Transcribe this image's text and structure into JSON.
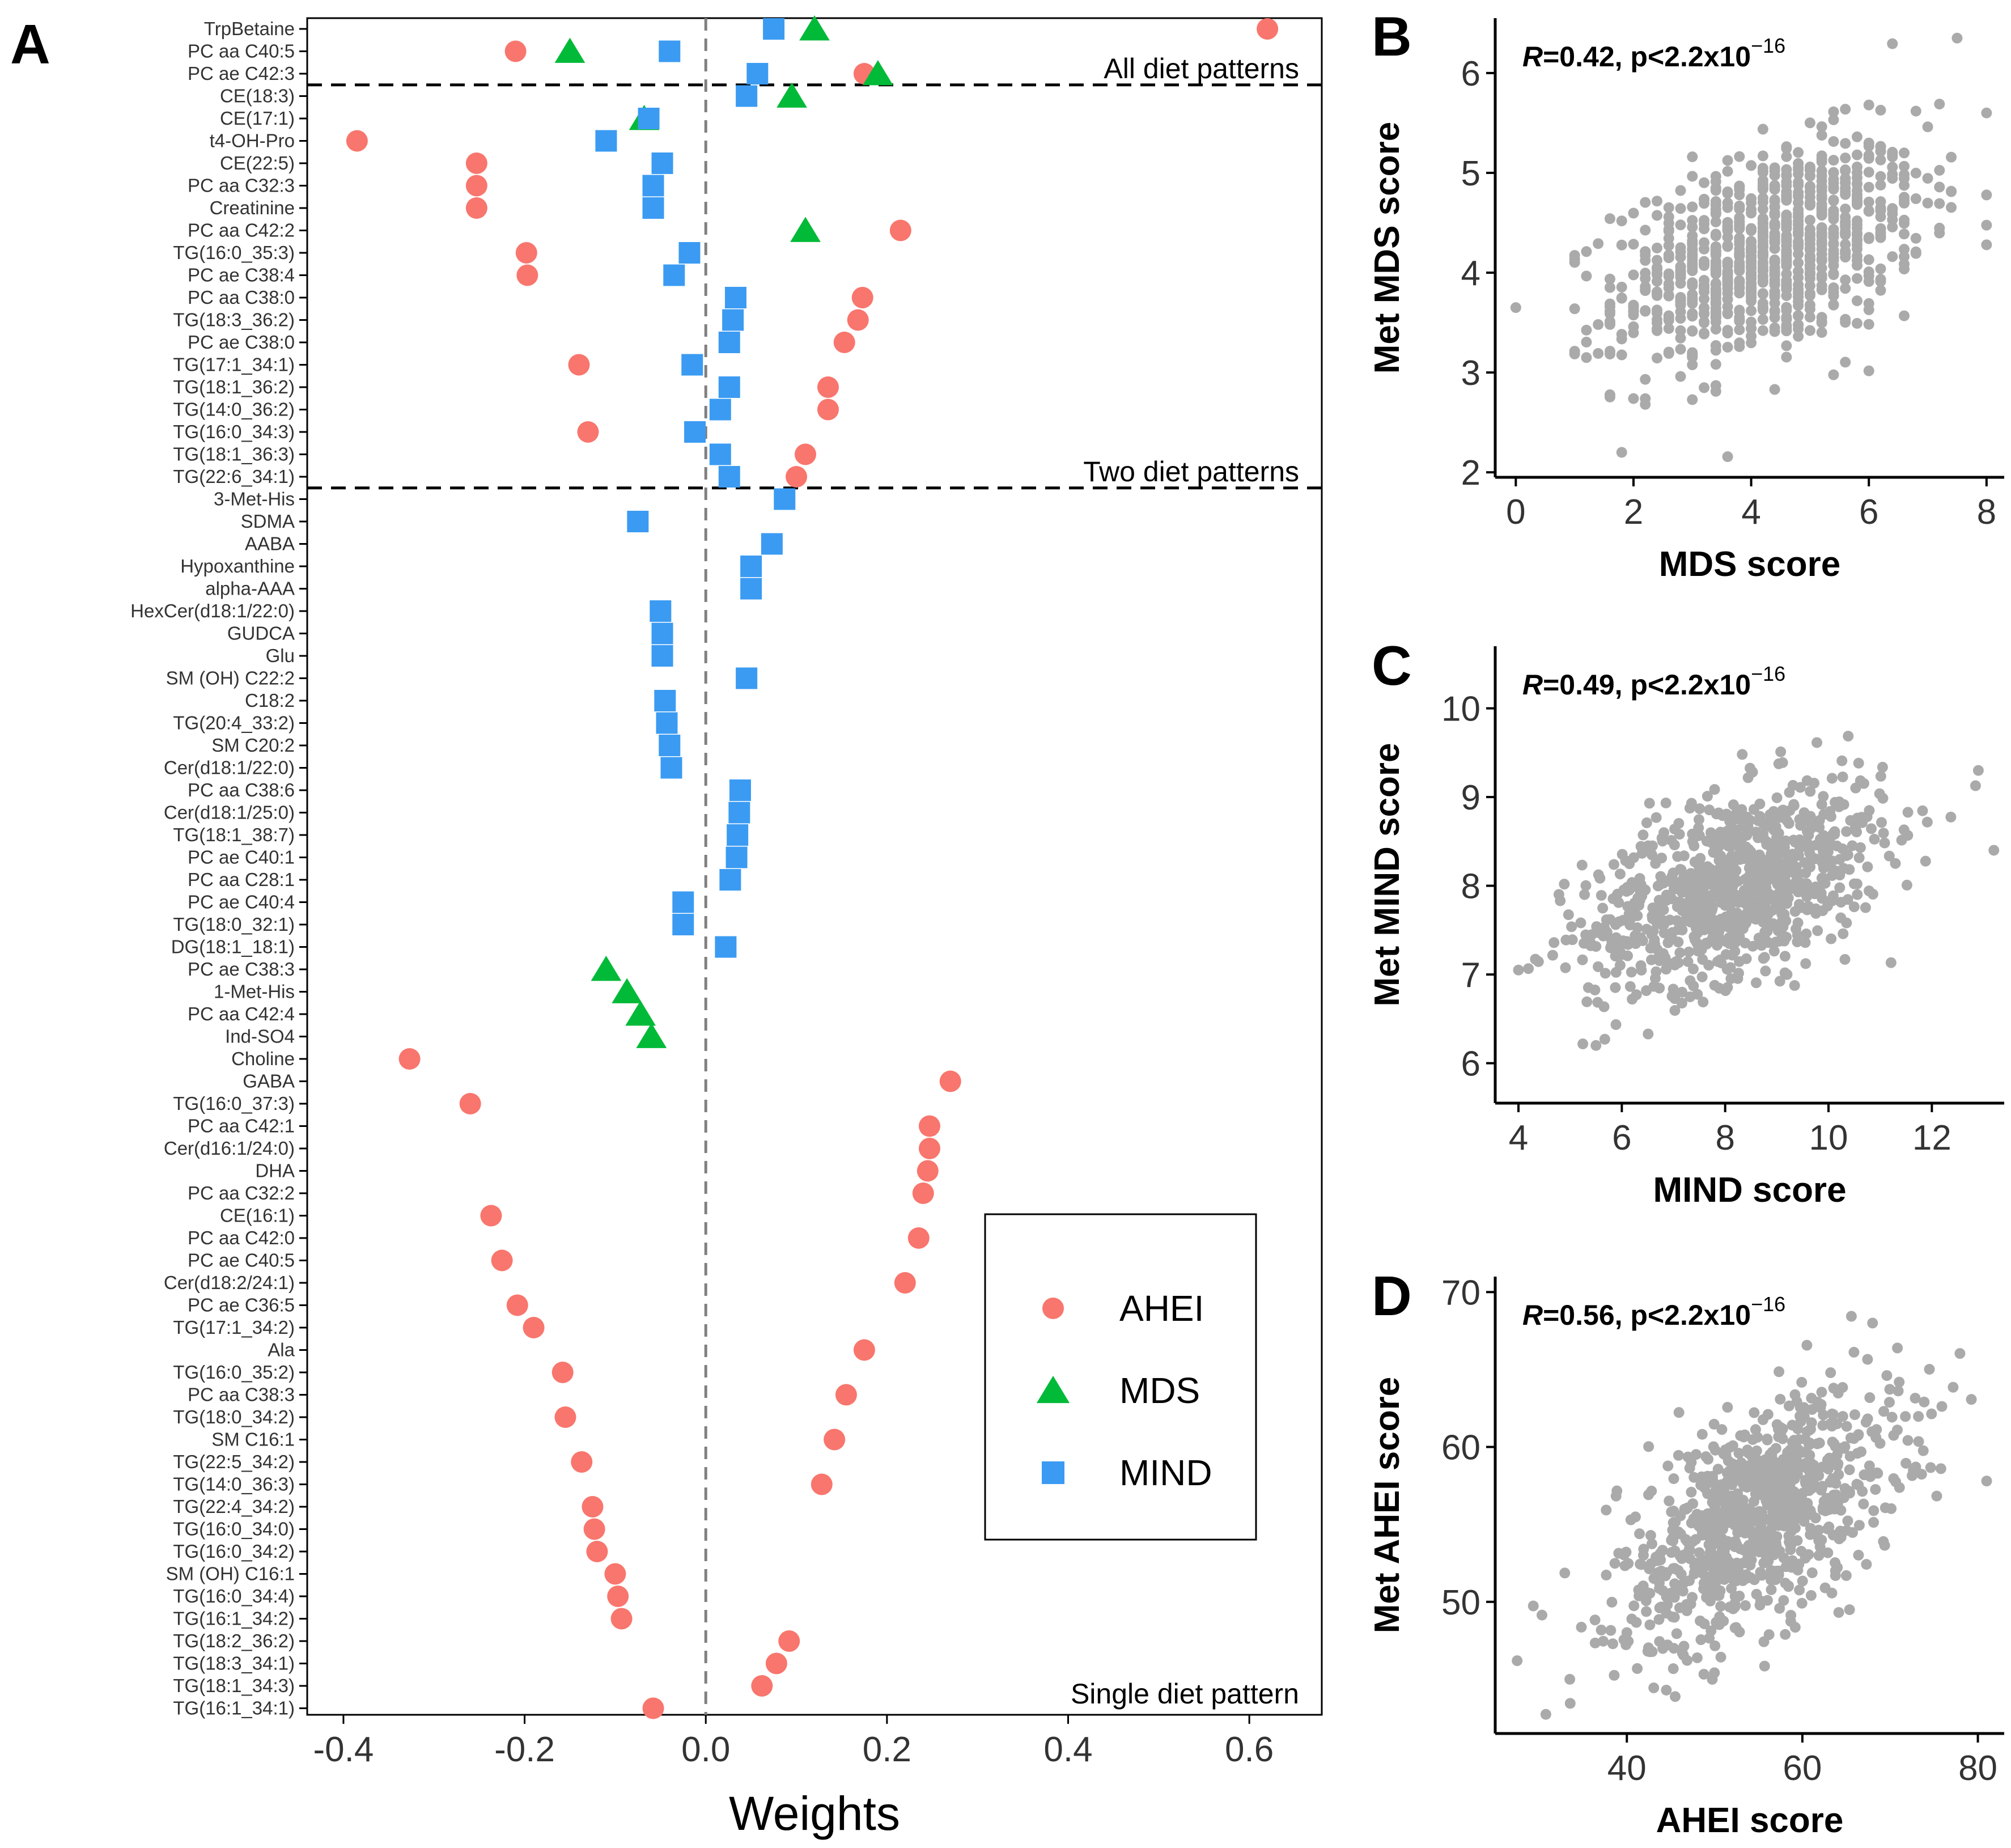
{
  "panel_labels": [
    "A",
    "B",
    "C",
    "D"
  ],
  "colors": {
    "AHEI": "#F8766D",
    "MDS": "#00BA38",
    "MIND": "#3B9BF2",
    "scatter": "#AAAAAA",
    "axis": "#000000",
    "zero_line": "#808080"
  },
  "chart_data": [
    {
      "type": "scatter",
      "panel": "A",
      "xlabel": "Weights",
      "ylabel": "",
      "xlim": [
        -0.44,
        0.68
      ],
      "xticks": [
        "-0.4",
        "-0.2",
        "0.0",
        "0.2",
        "0.4",
        "0.6"
      ],
      "xtick_values": [
        -0.4,
        -0.2,
        0.0,
        0.2,
        0.4,
        0.6
      ],
      "zero_line": 0.0,
      "legend": {
        "placement": "bottom-right",
        "entries": [
          {
            "name": "AHEI",
            "shape": "circle"
          },
          {
            "name": "MDS",
            "shape": "triangle"
          },
          {
            "name": "MIND",
            "shape": "square"
          }
        ]
      },
      "sections": [
        {
          "label": "All diet patterns",
          "after_index": 2
        },
        {
          "label": "Two diet patterns",
          "after_index": 20
        },
        {
          "label": "Single diet pattern",
          "after_index": null
        }
      ],
      "metabolites": [
        "TrpBetaine",
        "PC aa C40:5",
        "PC ae C42:3",
        "CE(18:3)",
        "CE(17:1)",
        "t4-OH-Pro",
        "CE(22:5)",
        "PC aa C32:3",
        "Creatinine",
        "PC aa C42:2",
        "TG(16:0_35:3)",
        "PC ae C38:4",
        "PC aa C38:0",
        "TG(18:3_36:2)",
        "PC ae C38:0",
        "TG(17:1_34:1)",
        "TG(18:1_36:2)",
        "TG(14:0_36:2)",
        "TG(16:0_34:3)",
        "TG(18:1_36:3)",
        "TG(22:6_34:1)",
        "3-Met-His",
        "SDMA",
        "AABA",
        "Hypoxanthine",
        "alpha-AAA",
        "HexCer(d18:1/22:0)",
        "GUDCA",
        "Glu",
        "SM (OH) C22:2",
        "C18:2",
        "TG(20:4_33:2)",
        "SM C20:2",
        "Cer(d18:1/22:0)",
        "PC aa C38:6",
        "Cer(d18:1/25:0)",
        "TG(18:1_38:7)",
        "PC ae C40:1",
        "PC aa C28:1",
        "PC ae C40:4",
        "TG(18:0_32:1)",
        "DG(18:1_18:1)",
        "PC ae C38:3",
        "1-Met-His",
        "PC aa C42:4",
        "Ind-SO4",
        "Choline",
        "GABA",
        "TG(16:0_37:3)",
        "PC aa C42:1",
        "Cer(d16:1/24:0)",
        "DHA",
        "PC aa C32:2",
        "CE(16:1)",
        "PC aa C42:0",
        "PC ae C40:5",
        "Cer(d18:2/24:1)",
        "PC ae C36:5",
        "TG(17:1_34:2)",
        "Ala",
        "TG(16:0_35:2)",
        "PC aa C38:3",
        "TG(18:0_34:2)",
        "SM C16:1",
        "TG(22:5_34:2)",
        "TG(14:0_36:3)",
        "TG(22:4_34:2)",
        "TG(16:0_34:0)",
        "TG(16:0_34:2)",
        "SM (OH) C16:1",
        "TG(16:0_34:4)",
        "TG(16:1_34:2)",
        "TG(18:2_36:2)",
        "TG(18:3_34:1)",
        "TG(18:1_34:3)",
        "TG(16:1_34:1)"
      ],
      "series": [
        {
          "name": "AHEI",
          "points": [
            [
              0,
              0.62
            ],
            [
              1,
              -0.21
            ],
            [
              2,
              0.175
            ],
            [
              5,
              -0.385
            ],
            [
              6,
              -0.253
            ],
            [
              7,
              -0.253
            ],
            [
              8,
              -0.253
            ],
            [
              9,
              0.215
            ],
            [
              10,
              -0.198
            ],
            [
              11,
              -0.197
            ],
            [
              12,
              0.173
            ],
            [
              13,
              0.168
            ],
            [
              14,
              0.153
            ],
            [
              15,
              -0.14
            ],
            [
              16,
              0.135
            ],
            [
              17,
              0.135
            ],
            [
              18,
              -0.13
            ],
            [
              19,
              0.11
            ],
            [
              20,
              0.1
            ],
            [
              46,
              -0.327
            ],
            [
              47,
              0.27
            ],
            [
              48,
              -0.26
            ],
            [
              49,
              0.247
            ],
            [
              50,
              0.247
            ],
            [
              51,
              0.245
            ],
            [
              52,
              0.24
            ],
            [
              53,
              -0.237
            ],
            [
              54,
              0.235
            ],
            [
              55,
              -0.225
            ],
            [
              56,
              0.22
            ],
            [
              57,
              -0.208
            ],
            [
              58,
              -0.19
            ],
            [
              59,
              0.175
            ],
            [
              60,
              -0.158
            ],
            [
              61,
              0.155
            ],
            [
              62,
              -0.155
            ],
            [
              63,
              0.142
            ],
            [
              64,
              -0.137
            ],
            [
              65,
              0.128
            ],
            [
              66,
              -0.125
            ],
            [
              67,
              -0.123
            ],
            [
              68,
              -0.12
            ],
            [
              69,
              -0.1
            ],
            [
              70,
              -0.097
            ],
            [
              71,
              -0.093
            ],
            [
              72,
              0.092
            ],
            [
              73,
              0.078
            ],
            [
              74,
              0.062
            ],
            [
              75,
              -0.058
            ]
          ]
        },
        {
          "name": "MDS",
          "points": [
            [
              0,
              0.12
            ],
            [
              1,
              -0.15
            ],
            [
              2,
              0.19
            ],
            [
              3,
              0.095
            ],
            [
              4,
              -0.068
            ],
            [
              9,
              0.11
            ],
            [
              42,
              -0.11
            ],
            [
              43,
              -0.087
            ],
            [
              44,
              -0.072
            ],
            [
              45,
              -0.06
            ]
          ]
        },
        {
          "name": "MIND",
          "points": [
            [
              0,
              0.075
            ],
            [
              1,
              -0.04
            ],
            [
              2,
              0.057
            ],
            [
              3,
              0.045
            ],
            [
              4,
              -0.063
            ],
            [
              5,
              -0.11
            ],
            [
              6,
              -0.048
            ],
            [
              7,
              -0.058
            ],
            [
              8,
              -0.058
            ],
            [
              10,
              -0.018
            ],
            [
              11,
              -0.035
            ],
            [
              12,
              0.033
            ],
            [
              13,
              0.03
            ],
            [
              14,
              0.026
            ],
            [
              15,
              -0.015
            ],
            [
              16,
              0.026
            ],
            [
              17,
              0.016
            ],
            [
              18,
              -0.012
            ],
            [
              19,
              0.016
            ],
            [
              20,
              0.026
            ],
            [
              21,
              0.087
            ],
            [
              22,
              -0.075
            ],
            [
              23,
              0.073
            ],
            [
              24,
              0.05
            ],
            [
              25,
              0.05
            ],
            [
              26,
              -0.05
            ],
            [
              27,
              -0.048
            ],
            [
              28,
              -0.048
            ],
            [
              29,
              0.045
            ],
            [
              30,
              -0.045
            ],
            [
              31,
              -0.043
            ],
            [
              32,
              -0.04
            ],
            [
              33,
              -0.038
            ],
            [
              34,
              0.038
            ],
            [
              35,
              0.037
            ],
            [
              36,
              0.035
            ],
            [
              37,
              0.034
            ],
            [
              38,
              0.027
            ],
            [
              39,
              -0.025
            ],
            [
              40,
              -0.025
            ],
            [
              41,
              0.022
            ]
          ]
        }
      ]
    },
    {
      "type": "scatter",
      "panel": "B",
      "annotation": {
        "stat": "R",
        "r": "=0.42, p<2.2x10",
        "exp": "−16"
      },
      "xlabel": "MDS score",
      "ylabel": "Met MDS score",
      "xlim": [
        -0.35,
        8.3
      ],
      "ylim": [
        1.95,
        6.55
      ],
      "xticks": [
        0,
        2,
        4,
        6,
        8
      ],
      "yticks": [
        2,
        3,
        4,
        5,
        6
      ],
      "discrete_x": true,
      "x_range": [
        1,
        8
      ],
      "center": [
        4.3,
        4.2
      ],
      "spread": [
        1.3,
        0.55
      ],
      "corr": 0.42,
      "n": 900,
      "extra_points": [
        [
          0,
          3.65
        ],
        [
          1.8,
          2.2
        ],
        [
          7.5,
          6.35
        ],
        [
          8.0,
          5.6
        ]
      ]
    },
    {
      "type": "scatter",
      "panel": "C",
      "annotation": {
        "stat": "R",
        "r": "=0.49, p<2.2x10",
        "exp": "−16"
      },
      "xlabel": "MIND score",
      "ylabel": "Met MIND score",
      "xlim": [
        3.55,
        13.4
      ],
      "ylim": [
        5.55,
        10.7
      ],
      "xticks": [
        4,
        6,
        8,
        10,
        12
      ],
      "yticks": [
        6,
        7,
        8,
        9,
        10
      ],
      "discrete_x": false,
      "x_range": [
        4,
        13.2
      ],
      "center": [
        8.2,
        8.0
      ],
      "spread": [
        1.45,
        0.58
      ],
      "corr": 0.49,
      "n": 900,
      "extra_points": [
        [
          4.0,
          7.05
        ],
        [
          12.9,
          9.3
        ],
        [
          13.2,
          8.4
        ],
        [
          5.5,
          6.2
        ]
      ]
    },
    {
      "type": "scatter",
      "panel": "D",
      "annotation": {
        "stat": "R",
        "r": "=0.56, p<2.2x10",
        "exp": "−16"
      },
      "xlabel": "AHEI score",
      "ylabel": "Met AHEI score",
      "xlim": [
        25,
        83
      ],
      "ylim": [
        41.5,
        71
      ],
      "xticks": [
        40,
        60,
        80
      ],
      "yticks": [
        50,
        60,
        70
      ],
      "discrete_x": false,
      "x_range": [
        27,
        81
      ],
      "center": [
        55,
        55.5
      ],
      "spread": [
        8.0,
        4.1
      ],
      "corr": 0.56,
      "n": 900,
      "extra_points": [
        [
          27.5,
          46.2
        ],
        [
          33.5,
          45.0
        ],
        [
          44.5,
          44.3
        ],
        [
          81,
          57.8
        ],
        [
          68,
          68.0
        ]
      ]
    }
  ]
}
